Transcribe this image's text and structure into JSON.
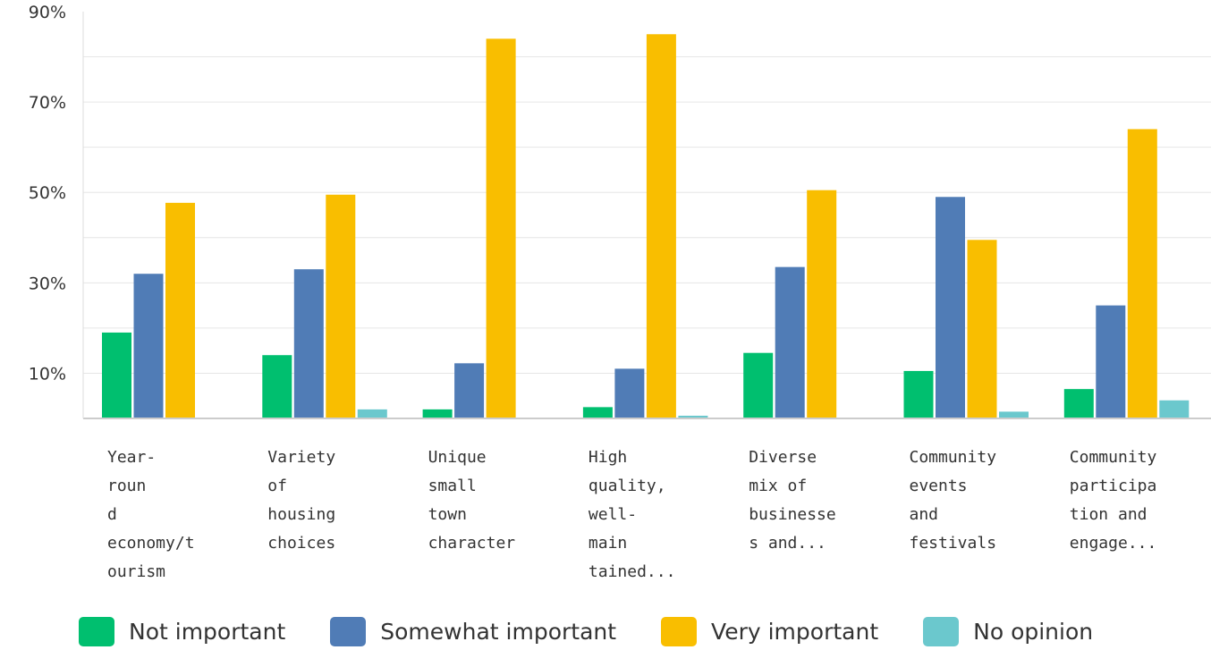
{
  "chart_data": {
    "type": "bar",
    "categories": [
      [
        "Year-",
        "roun",
        "d",
        "economy/t",
        "ourism"
      ],
      [
        "Variety",
        "of",
        "housing",
        "choices"
      ],
      [
        "Unique",
        "small",
        "town",
        "character"
      ],
      [
        "High",
        "quality,",
        "well-",
        "main",
        "tained..."
      ],
      [
        "Diverse",
        "mix of",
        "businesse",
        "s and..."
      ],
      [
        "Community",
        "events",
        "and",
        "festivals"
      ],
      [
        "Community",
        "participa",
        "tion and",
        "engage..."
      ]
    ],
    "series": [
      {
        "name": "Not important",
        "color": "#00BF6F",
        "values": [
          19,
          14,
          2,
          2.5,
          14.5,
          10.5,
          6.5
        ]
      },
      {
        "name": "Somewhat important",
        "color": "#507CB6",
        "values": [
          32,
          33,
          12.2,
          11,
          33.5,
          49,
          25
        ]
      },
      {
        "name": "Very important",
        "color": "#F9BE00",
        "values": [
          47.7,
          49.5,
          84,
          85,
          50.5,
          39.5,
          64
        ]
      },
      {
        "name": "No opinion",
        "color": "#6BC8CD",
        "values": [
          0,
          2,
          0,
          0.6,
          0,
          1.5,
          4
        ]
      }
    ],
    "yticks": [
      "10%",
      "30%",
      "50%",
      "70%",
      "90%"
    ],
    "ylim": [
      0,
      90
    ],
    "grid": true,
    "legend": "bottom"
  }
}
